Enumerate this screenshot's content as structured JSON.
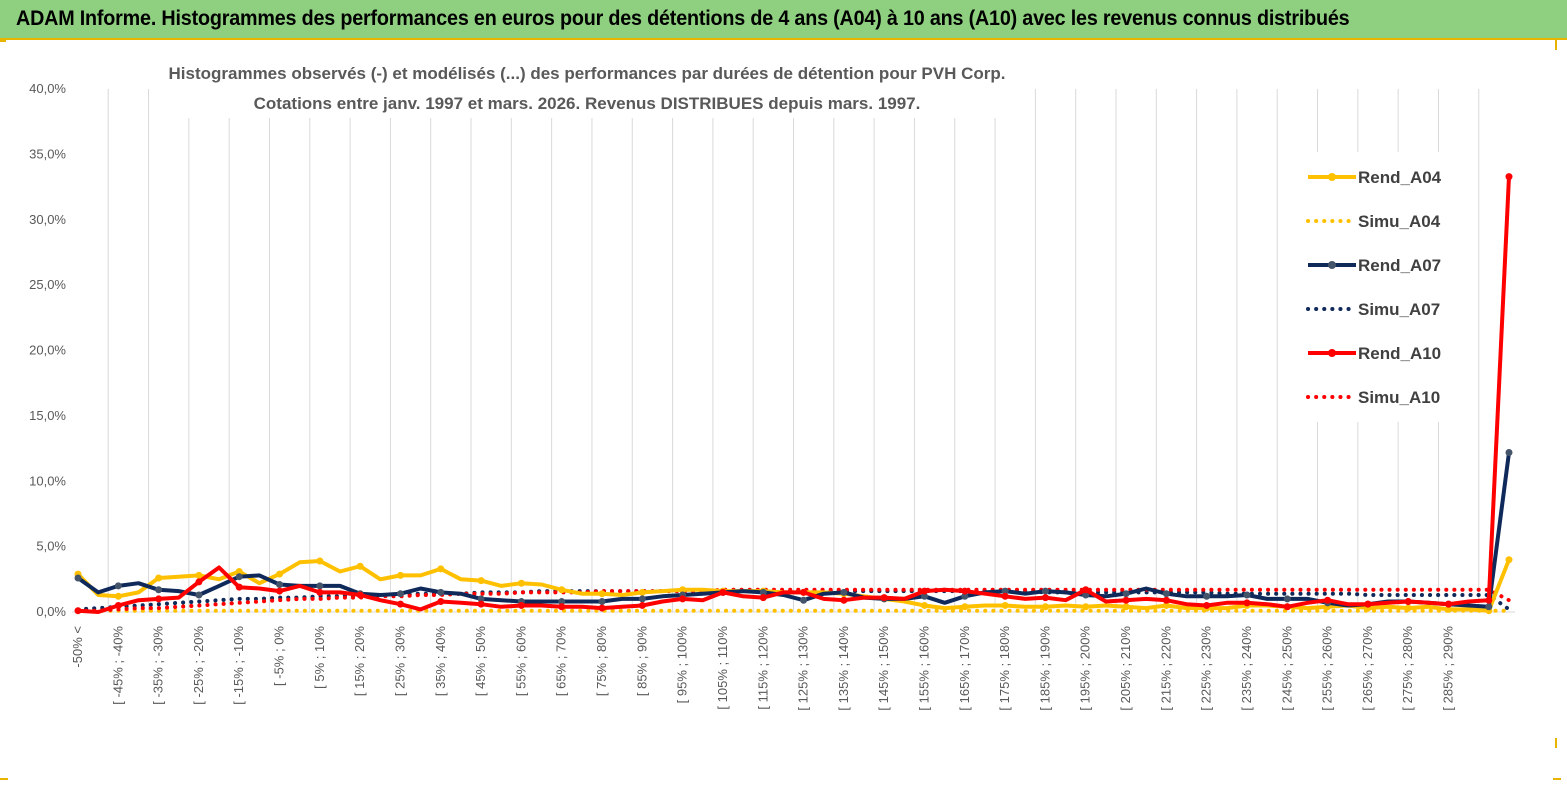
{
  "header": {
    "title": "ADAM Informe. Histogrammes des performances en euros pour des détentions de 4 ans (A04) à 10 ans (A10) avec les revenus connus distribués"
  },
  "chart_data": {
    "type": "line",
    "title_line1": "Histogrammes observés (-)  et modélisés (...) des performances par durées de détention pour PVH Corp.",
    "title_line2": "Cotations entre janv. 1997 et mars. 2026. Revenus DISTRIBUES depuis mars. 1997.",
    "ylim": [
      0,
      40
    ],
    "yticks": [
      "0,0%",
      "5,0%",
      "10,0%",
      "15,0%",
      "20,0%",
      "25,0%",
      "30,0%",
      "35,0%",
      "40,0%"
    ],
    "grid": "vertical",
    "legend_position": "right",
    "x_tick_labels": [
      "-50% <",
      "[ -45% ; -40%",
      "[ -35% ; -30%",
      "[ -25% ; -20%",
      "[ -15% ; -10%",
      "[ -5% ; 0%",
      "[ 5% ; 10%",
      "[ 15% ; 20%",
      "[ 25% ; 30%",
      "[ 35% ; 40%",
      "[ 45% ; 50%",
      "[ 55% ; 60%",
      "[ 65% ; 70%",
      "[ 75% ; 80%",
      "[ 85% ; 90%",
      "[ 95% ; 100%",
      "[ 105% ; 110%",
      "[ 115% ; 120%",
      "[ 125% ; 130%",
      "[ 135% ; 140%",
      "[ 145% ; 150%",
      "[ 155% ; 160%",
      "[ 165% ; 170%",
      "[ 175% ; 180%",
      "[ 185% ; 190%",
      "[ 195% ; 200%",
      "[ 205% ; 210%",
      "[ 215% ; 220%",
      "[ 225% ; 230%",
      "[ 235% ; 240%",
      "[ 245% ; 250%",
      "[ 255% ; 260%",
      "[ 265% ; 270%",
      "[ 275% ; 280%",
      "[ 285% ; 290%"
    ],
    "series": [
      {
        "name": "Rend_A04",
        "style": "solid",
        "color": "#ffc000",
        "values": [
          2.9,
          1.3,
          1.2,
          1.5,
          2.6,
          2.7,
          2.8,
          2.5,
          3.1,
          2.2,
          2.9,
          3.8,
          3.9,
          3.1,
          3.5,
          2.5,
          2.8,
          2.8,
          3.3,
          2.5,
          2.4,
          2.0,
          2.2,
          2.1,
          1.7,
          1.4,
          1.4,
          1.3,
          1.5,
          1.6,
          1.7,
          1.7,
          1.6,
          1.6,
          1.6,
          1.5,
          1.5,
          1.5,
          1.4,
          1.2,
          1.0,
          0.8,
          0.5,
          0.3,
          0.4,
          0.5,
          0.5,
          0.4,
          0.4,
          0.5,
          0.4,
          0.5,
          0.4,
          0.3,
          0.5,
          0.3,
          0.3,
          0.3,
          0.5,
          0.5,
          0.4,
          0.3,
          0.4,
          0.5,
          0.3,
          0.4,
          0.3,
          0.4,
          0.2,
          0.2,
          0.1,
          4.0
        ]
      },
      {
        "name": "Simu_A04",
        "style": "dotted",
        "color": "#ffc000",
        "values": [
          0.1,
          0.1,
          0.1,
          0.1,
          0.1,
          0.1,
          0.1,
          0.1,
          0.1,
          0.1,
          0.1,
          0.1,
          0.1,
          0.1,
          0.1,
          0.1,
          0.1,
          0.1,
          0.1,
          0.1,
          0.1,
          0.1,
          0.1,
          0.1,
          0.1,
          0.1,
          0.1,
          0.1,
          0.1,
          0.1,
          0.1,
          0.1,
          0.1,
          0.1,
          0.1,
          0.1,
          0.1,
          0.1,
          0.1,
          0.1,
          0.1,
          0.1,
          0.1,
          0.1,
          0.1,
          0.1,
          0.1,
          0.1,
          0.1,
          0.1,
          0.1,
          0.1,
          0.1,
          0.1,
          0.1,
          0.1,
          0.1,
          0.1,
          0.1,
          0.1,
          0.1,
          0.1,
          0.1,
          0.1,
          0.1,
          0.1,
          0.1,
          0.1,
          0.1,
          0.1,
          0.1,
          0.1
        ]
      },
      {
        "name": "Rend_A07",
        "style": "solid-marker",
        "color": "#0f2a5a",
        "values": [
          2.6,
          1.5,
          2.0,
          2.2,
          1.7,
          1.6,
          1.3,
          2.0,
          2.7,
          2.8,
          2.1,
          2.0,
          2.0,
          2.0,
          1.4,
          1.3,
          1.4,
          1.8,
          1.5,
          1.4,
          1.0,
          0.9,
          0.8,
          0.8,
          0.8,
          0.8,
          0.8,
          1.0,
          1.0,
          1.2,
          1.3,
          1.4,
          1.5,
          1.6,
          1.5,
          1.3,
          0.9,
          1.4,
          1.5,
          1.1,
          1.0,
          1.0,
          1.2,
          0.7,
          1.2,
          1.5,
          1.6,
          1.4,
          1.6,
          1.5,
          1.3,
          1.2,
          1.4,
          1.8,
          1.4,
          1.2,
          1.2,
          1.2,
          1.3,
          1.0,
          1.0,
          1.0,
          0.7,
          0.5,
          0.6,
          0.8,
          0.8,
          0.7,
          0.6,
          0.5,
          0.4,
          12.2
        ]
      },
      {
        "name": "Simu_A07",
        "style": "dotted",
        "color": "#0f2a5a",
        "values": [
          0.2,
          0.3,
          0.4,
          0.5,
          0.6,
          0.7,
          0.8,
          0.9,
          1.0,
          1.0,
          1.1,
          1.1,
          1.2,
          1.2,
          1.3,
          1.3,
          1.3,
          1.4,
          1.4,
          1.4,
          1.5,
          1.5,
          1.5,
          1.6,
          1.6,
          1.6,
          1.6,
          1.6,
          1.6,
          1.6,
          1.6,
          1.6,
          1.6,
          1.6,
          1.6,
          1.6,
          1.6,
          1.6,
          1.6,
          1.6,
          1.6,
          1.6,
          1.6,
          1.6,
          1.6,
          1.6,
          1.6,
          1.6,
          1.5,
          1.5,
          1.5,
          1.5,
          1.5,
          1.5,
          1.5,
          1.5,
          1.5,
          1.4,
          1.4,
          1.4,
          1.4,
          1.4,
          1.4,
          1.4,
          1.3,
          1.3,
          1.3,
          1.3,
          1.3,
          1.3,
          1.3,
          0.2
        ]
      },
      {
        "name": "Rend_A10",
        "style": "solid",
        "color": "#ff0000",
        "values": [
          0.1,
          0.0,
          0.5,
          0.9,
          1.0,
          1.1,
          2.3,
          3.4,
          1.9,
          1.8,
          1.6,
          2.0,
          1.5,
          1.5,
          1.3,
          0.9,
          0.6,
          0.2,
          0.8,
          0.7,
          0.6,
          0.4,
          0.5,
          0.5,
          0.4,
          0.4,
          0.3,
          0.4,
          0.5,
          0.8,
          1.0,
          0.9,
          1.5,
          1.2,
          1.1,
          1.5,
          1.5,
          1.0,
          0.9,
          1.1,
          1.1,
          1.0,
          1.6,
          1.7,
          1.6,
          1.4,
          1.2,
          1.0,
          1.1,
          0.9,
          1.7,
          0.8,
          0.9,
          1.0,
          0.9,
          0.6,
          0.5,
          0.7,
          0.7,
          0.6,
          0.4,
          0.7,
          0.9,
          0.6,
          0.6,
          0.7,
          0.8,
          0.7,
          0.6,
          0.8,
          0.9,
          33.3
        ]
      },
      {
        "name": "Simu_A10",
        "style": "dotted",
        "color": "#ff0000",
        "values": [
          0.1,
          0.1,
          0.2,
          0.3,
          0.3,
          0.4,
          0.5,
          0.6,
          0.7,
          0.8,
          0.9,
          1.0,
          1.0,
          1.1,
          1.1,
          1.2,
          1.2,
          1.3,
          1.3,
          1.4,
          1.4,
          1.4,
          1.5,
          1.5,
          1.5,
          1.5,
          1.6,
          1.6,
          1.6,
          1.6,
          1.6,
          1.6,
          1.7,
          1.7,
          1.7,
          1.7,
          1.7,
          1.7,
          1.7,
          1.7,
          1.7,
          1.7,
          1.7,
          1.7,
          1.7,
          1.7,
          1.7,
          1.7,
          1.7,
          1.7,
          1.7,
          1.7,
          1.7,
          1.7,
          1.7,
          1.7,
          1.7,
          1.7,
          1.7,
          1.7,
          1.7,
          1.7,
          1.7,
          1.7,
          1.7,
          1.7,
          1.7,
          1.7,
          1.7,
          1.7,
          1.7,
          0.9
        ]
      }
    ]
  }
}
